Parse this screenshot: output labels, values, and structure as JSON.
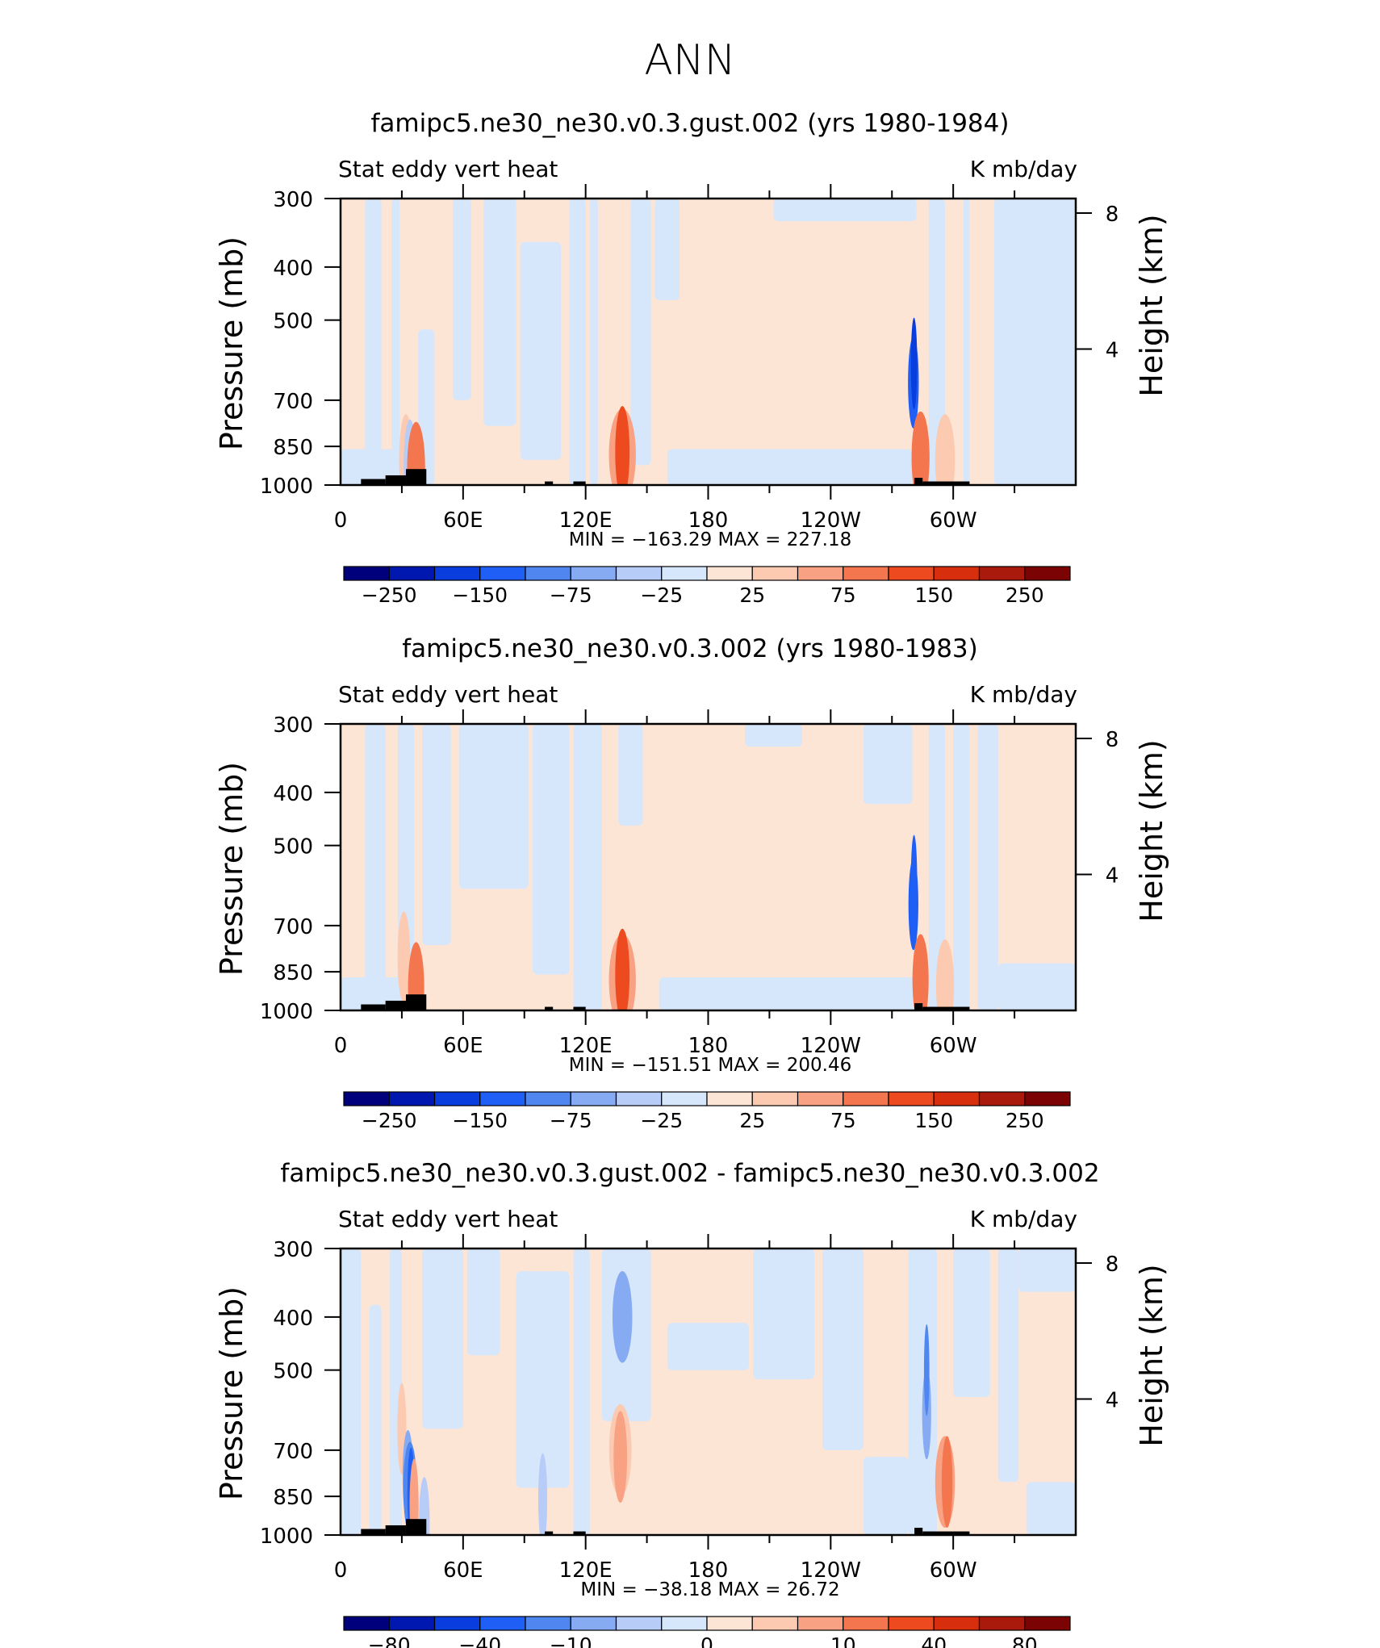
{
  "page_title": "ANN",
  "colors": {
    "neg": [
      "#00007d",
      "#0018b0",
      "#0a3ddd",
      "#1f5ff5",
      "#4f86f0",
      "#86abf2",
      "#b7ccf7",
      "#d6e6fb"
    ],
    "pos": [
      "#fde5d6",
      "#fbcab1",
      "#f8a183",
      "#f4764f",
      "#ee4a1f",
      "#d72f0d",
      "#a9190c",
      "#7b0303"
    ],
    "land": "#000000"
  },
  "chart_data": [
    {
      "type": "heatmap",
      "title": "famipc5.ne30_ne30.v0.3.gust.002 (yrs 1980-1984)",
      "left_label": "Stat eddy vert heat",
      "right_label": "K mb/day",
      "ylabel": "Pressure (mb)",
      "ylabel_right": "Height (km)",
      "ylim": [
        1000,
        300
      ],
      "yticks": [
        "300",
        "400",
        "500",
        "700",
        "850",
        "1000"
      ],
      "ytick_values": [
        300,
        400,
        500,
        700,
        850,
        1000
      ],
      "height_ticks": [
        "8",
        "4"
      ],
      "height_tick_values": [
        8,
        4
      ],
      "xlim": [
        0,
        360
      ],
      "xticks": [
        "0",
        "60E",
        "120E",
        "180",
        "120W",
        "60W"
      ],
      "xtick_values": [
        0,
        60,
        120,
        180,
        240,
        300
      ],
      "minmax_text": "MIN = −163.29   MAX = 227.18",
      "min": -163.29,
      "max": 227.18,
      "colorbar_levels": [
        -300,
        -250,
        -200,
        -150,
        -100,
        -75,
        -50,
        -25,
        0,
        25,
        50,
        75,
        100,
        150,
        200,
        250,
        300
      ],
      "colorbar_labels": [
        "−250",
        "−150",
        "−75",
        "−25",
        "25",
        "75",
        "150",
        "250"
      ],
      "colorbar_label_values": [
        -250,
        -150,
        -75,
        -25,
        25,
        75,
        150,
        250
      ],
      "background_value": 10,
      "fields": [
        {
          "lon": [
            12,
            20
          ],
          "p": [
            300,
            1000
          ],
          "value": -10
        },
        {
          "lon": [
            25,
            29
          ],
          "p": [
            300,
            1000
          ],
          "value": -10
        },
        {
          "lon": [
            38,
            46
          ],
          "p": [
            520,
            1000
          ],
          "value": -10
        },
        {
          "lon": [
            55,
            64
          ],
          "p": [
            300,
            700
          ],
          "value": -10
        },
        {
          "lon": [
            70,
            86
          ],
          "p": [
            300,
            780
          ],
          "value": -10
        },
        {
          "lon": [
            88,
            108
          ],
          "p": [
            360,
            900
          ],
          "value": -10
        },
        {
          "lon": [
            112,
            120
          ],
          "p": [
            300,
            1000
          ],
          "value": -10
        },
        {
          "lon": [
            122,
            126
          ],
          "p": [
            300,
            1000
          ],
          "value": -10
        },
        {
          "lon": [
            142,
            152
          ],
          "p": [
            300,
            920
          ],
          "value": -10
        },
        {
          "lon": [
            154,
            166
          ],
          "p": [
            300,
            460
          ],
          "value": -10
        },
        {
          "lon": [
            160,
            280
          ],
          "p": [
            860,
            1000
          ],
          "value": -10
        },
        {
          "lon": [
            212,
            282
          ],
          "p": [
            300,
            330
          ],
          "value": -10
        },
        {
          "lon": [
            288,
            296
          ],
          "p": [
            300,
            1000
          ],
          "value": -10
        },
        {
          "lon": [
            305,
            308
          ],
          "p": [
            300,
            1000
          ],
          "value": -10
        },
        {
          "lon": [
            320,
            360
          ],
          "p": [
            300,
            1000
          ],
          "value": -10
        },
        {
          "lon": [
            0,
            30
          ],
          "p": [
            860,
            1000
          ],
          "value": -10
        }
      ],
      "blobs": [
        {
          "lon": 32,
          "p": 900,
          "dlon": 1.5,
          "value": 30
        },
        {
          "lon": 34,
          "p": 920,
          "dlon": 1.4,
          "value": -40
        },
        {
          "lon": 37,
          "p": 930,
          "dlon": 2,
          "value": 80
        },
        {
          "lon": 138,
          "p": 880,
          "dlon": 3,
          "value": 60
        },
        {
          "lon": 138,
          "p": 870,
          "dlon": 1.6,
          "value": 110
        },
        {
          "lon": 280.5,
          "p": 650,
          "dlon": 1.2,
          "value": -110
        },
        {
          "lon": 280.8,
          "p": 600,
          "dlon": 0.7,
          "value": -170
        },
        {
          "lon": 284,
          "p": 890,
          "dlon": 2,
          "value": 90
        },
        {
          "lon": 296,
          "p": 900,
          "dlon": 2.2,
          "value": 40
        }
      ],
      "topography": [
        [
          10,
          22,
          975
        ],
        [
          22,
          32,
          960
        ],
        [
          32,
          42,
          935
        ],
        [
          100,
          104,
          985
        ],
        [
          114,
          120,
          985
        ],
        [
          281,
          285,
          970
        ],
        [
          285,
          308,
          985
        ]
      ]
    },
    {
      "type": "heatmap",
      "title": "famipc5.ne30_ne30.v0.3.002 (yrs 1980-1983)",
      "left_label": "Stat eddy vert heat",
      "right_label": "K mb/day",
      "ylabel": "Pressure (mb)",
      "ylabel_right": "Height (km)",
      "ylim": [
        1000,
        300
      ],
      "yticks": [
        "300",
        "400",
        "500",
        "700",
        "850",
        "1000"
      ],
      "ytick_values": [
        300,
        400,
        500,
        700,
        850,
        1000
      ],
      "height_ticks": [
        "8",
        "4"
      ],
      "height_tick_values": [
        8,
        4
      ],
      "xlim": [
        0,
        360
      ],
      "xticks": [
        "0",
        "60E",
        "120E",
        "180",
        "120W",
        "60W"
      ],
      "xtick_values": [
        0,
        60,
        120,
        180,
        240,
        300
      ],
      "minmax_text": "MIN = −151.51   MAX = 200.46",
      "min": -151.51,
      "max": 200.46,
      "colorbar_levels": [
        -300,
        -250,
        -200,
        -150,
        -100,
        -75,
        -50,
        -25,
        0,
        25,
        50,
        75,
        100,
        150,
        200,
        250,
        300
      ],
      "colorbar_labels": [
        "−250",
        "−150",
        "−75",
        "−25",
        "25",
        "75",
        "150",
        "250"
      ],
      "colorbar_label_values": [
        -250,
        -150,
        -75,
        -25,
        25,
        75,
        150,
        250
      ],
      "background_value": 10,
      "fields": [
        {
          "lon": [
            12,
            22
          ],
          "p": [
            300,
            1000
          ],
          "value": -10
        },
        {
          "lon": [
            28,
            36
          ],
          "p": [
            300,
            1000
          ],
          "value": -10
        },
        {
          "lon": [
            40,
            54
          ],
          "p": [
            300,
            760
          ],
          "value": -10
        },
        {
          "lon": [
            58,
            92
          ],
          "p": [
            300,
            600
          ],
          "value": -10
        },
        {
          "lon": [
            94,
            112
          ],
          "p": [
            300,
            860
          ],
          "value": -10
        },
        {
          "lon": [
            114,
            128
          ],
          "p": [
            300,
            1000
          ],
          "value": -10
        },
        {
          "lon": [
            136,
            148
          ],
          "p": [
            300,
            460
          ],
          "value": -10
        },
        {
          "lon": [
            198,
            226
          ],
          "p": [
            300,
            330
          ],
          "value": -10
        },
        {
          "lon": [
            256,
            280
          ],
          "p": [
            300,
            420
          ],
          "value": -10
        },
        {
          "lon": [
            156,
            282
          ],
          "p": [
            870,
            1000
          ],
          "value": -10
        },
        {
          "lon": [
            288,
            296
          ],
          "p": [
            300,
            1000
          ],
          "value": -10
        },
        {
          "lon": [
            300,
            308
          ],
          "p": [
            300,
            1000
          ],
          "value": -10
        },
        {
          "lon": [
            312,
            322
          ],
          "p": [
            300,
            1000
          ],
          "value": -10
        },
        {
          "lon": [
            322,
            360
          ],
          "p": [
            820,
            1000
          ],
          "value": -10
        },
        {
          "lon": [
            0,
            30
          ],
          "p": [
            870,
            1000
          ],
          "value": -10
        }
      ],
      "blobs": [
        {
          "lon": 31,
          "p": 800,
          "dlon": 1.4,
          "value": 30
        },
        {
          "lon": 37,
          "p": 910,
          "dlon": 1.8,
          "value": 90
        },
        {
          "lon": 138,
          "p": 880,
          "dlon": 3,
          "value": 60
        },
        {
          "lon": 138,
          "p": 860,
          "dlon": 1.6,
          "value": 110
        },
        {
          "lon": 280.5,
          "p": 640,
          "dlon": 1.1,
          "value": -110
        },
        {
          "lon": 280.8,
          "p": 580,
          "dlon": 0.7,
          "value": -150
        },
        {
          "lon": 284,
          "p": 880,
          "dlon": 1.8,
          "value": 90
        },
        {
          "lon": 296,
          "p": 900,
          "dlon": 2,
          "value": 40
        }
      ],
      "topography": [
        [
          10,
          22,
          975
        ],
        [
          22,
          32,
          960
        ],
        [
          32,
          42,
          935
        ],
        [
          100,
          104,
          985
        ],
        [
          114,
          120,
          985
        ],
        [
          281,
          285,
          970
        ],
        [
          285,
          308,
          985
        ]
      ]
    },
    {
      "type": "heatmap",
      "title": "famipc5.ne30_ne30.v0.3.gust.002 - famipc5.ne30_ne30.v0.3.002",
      "left_label": "Stat eddy vert heat",
      "right_label": "K mb/day",
      "ylabel": "Pressure (mb)",
      "ylabel_right": "Height (km)",
      "ylim": [
        1000,
        300
      ],
      "yticks": [
        "300",
        "400",
        "500",
        "700",
        "850",
        "1000"
      ],
      "ytick_values": [
        300,
        400,
        500,
        700,
        850,
        1000
      ],
      "height_ticks": [
        "8",
        "4"
      ],
      "height_tick_values": [
        8,
        4
      ],
      "xlim": [
        0,
        360
      ],
      "xticks": [
        "0",
        "60E",
        "120E",
        "180",
        "120W",
        "60W"
      ],
      "xtick_values": [
        0,
        60,
        120,
        180,
        240,
        300
      ],
      "minmax_text": "MIN = −38.18   MAX =   26.72",
      "min": -38.18,
      "max": 26.72,
      "colorbar_levels": [
        -100,
        -80,
        -60,
        -40,
        -20,
        -10,
        -5,
        -2,
        0,
        2,
        5,
        10,
        20,
        40,
        60,
        80,
        100
      ],
      "colorbar_labels": [
        "−80",
        "−40",
        "−10",
        "0",
        "10",
        "40",
        "80"
      ],
      "colorbar_label_values": [
        -80,
        -40,
        -10,
        0,
        10,
        40,
        80
      ],
      "background_value": 1,
      "fields": [
        {
          "lon": [
            0,
            10
          ],
          "p": [
            300,
            1000
          ],
          "value": -1
        },
        {
          "lon": [
            14,
            20
          ],
          "p": [
            380,
            1000
          ],
          "value": -1
        },
        {
          "lon": [
            24,
            30
          ],
          "p": [
            300,
            1000
          ],
          "value": -1
        },
        {
          "lon": [
            40,
            60
          ],
          "p": [
            300,
            640
          ],
          "value": -1
        },
        {
          "lon": [
            62,
            78
          ],
          "p": [
            300,
            470
          ],
          "value": -1
        },
        {
          "lon": [
            86,
            112
          ],
          "p": [
            330,
            820
          ],
          "value": -1
        },
        {
          "lon": [
            114,
            122
          ],
          "p": [
            300,
            1000
          ],
          "value": -1
        },
        {
          "lon": [
            128,
            152
          ],
          "p": [
            300,
            620
          ],
          "value": -1
        },
        {
          "lon": [
            160,
            200
          ],
          "p": [
            410,
            500
          ],
          "value": -1
        },
        {
          "lon": [
            202,
            232
          ],
          "p": [
            300,
            520
          ],
          "value": -1
        },
        {
          "lon": [
            236,
            256
          ],
          "p": [
            300,
            700
          ],
          "value": -1
        },
        {
          "lon": [
            256,
            278
          ],
          "p": [
            720,
            1000
          ],
          "value": -1
        },
        {
          "lon": [
            278,
            292
          ],
          "p": [
            300,
            1000
          ],
          "value": -1
        },
        {
          "lon": [
            300,
            318
          ],
          "p": [
            300,
            560
          ],
          "value": -1
        },
        {
          "lon": [
            322,
            332
          ],
          "p": [
            300,
            800
          ],
          "value": -1
        },
        {
          "lon": [
            332,
            360
          ],
          "p": [
            300,
            360
          ],
          "value": -1
        },
        {
          "lon": [
            336,
            360
          ],
          "p": [
            800,
            1000
          ],
          "value": -1
        }
      ],
      "blobs": [
        {
          "lon": 30,
          "p": 640,
          "dlon": 1,
          "value": 3
        },
        {
          "lon": 33,
          "p": 780,
          "dlon": 1.2,
          "value": -7
        },
        {
          "lon": 34,
          "p": 820,
          "dlon": 1.5,
          "value": -14
        },
        {
          "lon": 34.5,
          "p": 840,
          "dlon": 0.8,
          "value": -24
        },
        {
          "lon": 36,
          "p": 880,
          "dlon": 1,
          "value": 6
        },
        {
          "lon": 41,
          "p": 950,
          "dlon": 1.2,
          "value": -4
        },
        {
          "lon": 138,
          "p": 400,
          "dlon": 2.2,
          "value": -7
        },
        {
          "lon": 137,
          "p": 700,
          "dlon": 2.5,
          "value": 4
        },
        {
          "lon": 137,
          "p": 720,
          "dlon": 1.5,
          "value": 8
        },
        {
          "lon": 99,
          "p": 860,
          "dlon": 1,
          "value": -3
        },
        {
          "lon": 287,
          "p": 600,
          "dlon": 1,
          "value": -6
        },
        {
          "lon": 287,
          "p": 500,
          "dlon": 0.6,
          "value": -12
        },
        {
          "lon": 296,
          "p": 800,
          "dlon": 2.2,
          "value": 5
        },
        {
          "lon": 297,
          "p": 800,
          "dlon": 1.2,
          "value": 14
        }
      ],
      "topography": [
        [
          10,
          22,
          975
        ],
        [
          22,
          32,
          960
        ],
        [
          32,
          42,
          935
        ],
        [
          100,
          104,
          985
        ],
        [
          114,
          120,
          985
        ],
        [
          281,
          285,
          970
        ],
        [
          285,
          308,
          985
        ]
      ]
    }
  ]
}
